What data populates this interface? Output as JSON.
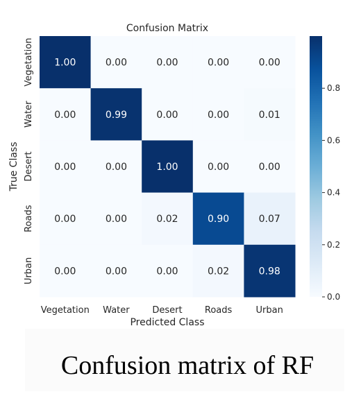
{
  "chart_data": {
    "type": "heatmap",
    "title": "Confusion Matrix",
    "xlabel": "Predicted Class",
    "ylabel": "True Class",
    "x_categories": [
      "Vegetation",
      "Water",
      "Desert",
      "Roads",
      "Urban"
    ],
    "y_categories": [
      "Vegetation",
      "Water",
      "Desert",
      "Roads",
      "Urban"
    ],
    "values": [
      [
        1.0,
        0.0,
        0.0,
        0.0,
        0.0
      ],
      [
        0.0,
        0.99,
        0.0,
        0.0,
        0.01
      ],
      [
        0.0,
        0.0,
        1.0,
        0.0,
        0.0
      ],
      [
        0.0,
        0.0,
        0.02,
        0.9,
        0.07
      ],
      [
        0.0,
        0.0,
        0.0,
        0.02,
        0.98
      ]
    ],
    "colormap": "Blues",
    "colorbar": {
      "range": [
        0.0,
        1.0
      ],
      "ticks": [
        0.0,
        0.2,
        0.4,
        0.6,
        0.8
      ],
      "tick_labels": [
        "0.0",
        "0.2",
        "0.4",
        "0.6",
        "0.8"
      ]
    },
    "value_format": "2 decimals"
  },
  "caption": "Confusion matrix of RF",
  "colors": {
    "text": "#262626",
    "annot_light": "#ffffff",
    "annot_dark": "#262626"
  }
}
